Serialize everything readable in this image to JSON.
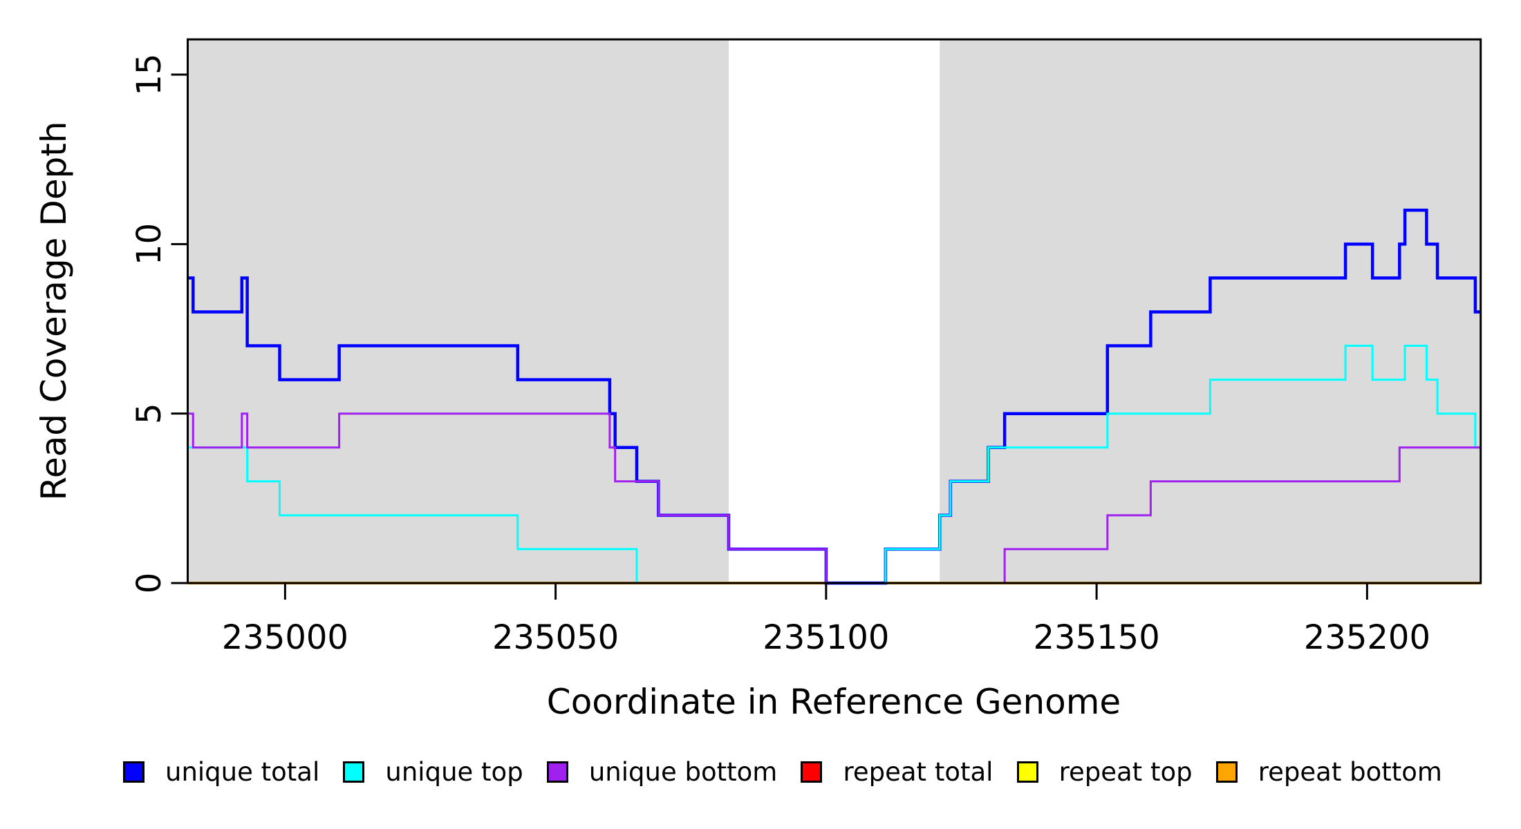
{
  "chart_data": {
    "type": "line",
    "subtype": "step-post",
    "title": "",
    "xlabel": "Coordinate in Reference Genome",
    "ylabel": "Read Coverage Depth",
    "xlim": [
      234982,
      235221
    ],
    "ylim": [
      0,
      16.04
    ],
    "x_ticks": [
      235000,
      235050,
      235100,
      235150,
      235200
    ],
    "x_tick_labels": [
      "235000",
      "235050",
      "235100",
      "235150",
      "235200"
    ],
    "y_ticks": [
      0,
      5,
      10,
      15
    ],
    "y_tick_labels": [
      "0",
      "5",
      "10",
      "15"
    ],
    "grid": false,
    "background_color": "#ffffff",
    "shaded_regions": [
      {
        "name": "left-gray-region",
        "x0": 234982,
        "x1": 235082,
        "color": "#dbdbdb"
      },
      {
        "name": "right-gray-region",
        "x0": 235121,
        "x1": 235221,
        "color": "#dbdbdb"
      }
    ],
    "series": [
      {
        "name": "unique total",
        "color": "#0000ff",
        "line_width": 4.5,
        "points": [
          [
            234982,
            9
          ],
          [
            234983,
            8
          ],
          [
            234992,
            9
          ],
          [
            234993,
            7
          ],
          [
            234999,
            6
          ],
          [
            235010,
            7
          ],
          [
            235043,
            6
          ],
          [
            235060,
            5
          ],
          [
            235061,
            4
          ],
          [
            235065,
            3
          ],
          [
            235069,
            2
          ],
          [
            235082,
            1
          ],
          [
            235100,
            0
          ],
          [
            235111,
            1
          ],
          [
            235121,
            2
          ],
          [
            235123,
            3
          ],
          [
            235130,
            4
          ],
          [
            235133,
            5
          ],
          [
            235152,
            7
          ],
          [
            235160,
            8
          ],
          [
            235171,
            9
          ],
          [
            235196,
            10
          ],
          [
            235201,
            9
          ],
          [
            235206,
            10
          ],
          [
            235207,
            11
          ],
          [
            235211,
            10
          ],
          [
            235213,
            9
          ],
          [
            235220,
            8
          ],
          [
            235221,
            8
          ]
        ]
      },
      {
        "name": "unique top",
        "color": "#00ffff",
        "line_width": 3,
        "points": [
          [
            234982,
            4
          ],
          [
            234993,
            3
          ],
          [
            234999,
            2
          ],
          [
            235043,
            1
          ],
          [
            235065,
            0
          ],
          [
            235111,
            1
          ],
          [
            235121,
            2
          ],
          [
            235123,
            3
          ],
          [
            235130,
            4
          ],
          [
            235152,
            5
          ],
          [
            235171,
            6
          ],
          [
            235196,
            7
          ],
          [
            235201,
            6
          ],
          [
            235207,
            7
          ],
          [
            235211,
            6
          ],
          [
            235213,
            5
          ],
          [
            235220,
            4
          ],
          [
            235221,
            4
          ]
        ]
      },
      {
        "name": "unique bottom",
        "color": "#a020f0",
        "line_width": 3,
        "points": [
          [
            234982,
            5
          ],
          [
            234983,
            4
          ],
          [
            234992,
            5
          ],
          [
            234993,
            4
          ],
          [
            235010,
            5
          ],
          [
            235060,
            4
          ],
          [
            235061,
            3
          ],
          [
            235069,
            2
          ],
          [
            235082,
            1
          ],
          [
            235100,
            0
          ],
          [
            235133,
            1
          ],
          [
            235152,
            2
          ],
          [
            235160,
            3
          ],
          [
            235206,
            4
          ],
          [
            235221,
            4
          ]
        ]
      },
      {
        "name": "repeat total",
        "color": "#ff0000",
        "line_width": 3,
        "points": [
          [
            234982,
            0
          ],
          [
            235221,
            0
          ]
        ]
      },
      {
        "name": "repeat top",
        "color": "#ffff00",
        "line_width": 3,
        "points": [
          [
            234982,
            0
          ],
          [
            235221,
            0
          ]
        ]
      },
      {
        "name": "repeat bottom",
        "color": "#ffa500",
        "line_width": 4,
        "points": [
          [
            234982,
            0
          ],
          [
            235221,
            0
          ]
        ]
      }
    ],
    "draw_order": [
      "repeat total",
      "repeat top",
      "repeat bottom",
      "unique total",
      "unique top",
      "unique bottom"
    ],
    "legend_position": "bottom"
  }
}
